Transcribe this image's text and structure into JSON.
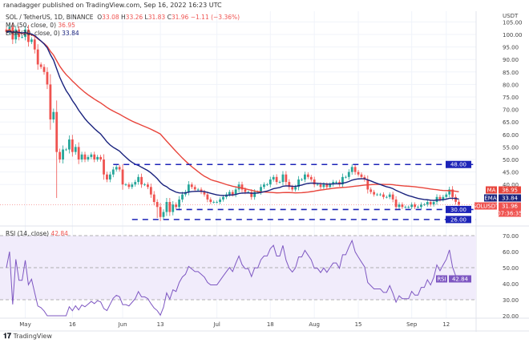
{
  "published": "ranadagger published on TradingView.com, Sep 16, 2022 16:23 UTC",
  "legend": {
    "symbol": "SOL / TetherUS, 1D, BINANCE",
    "o_label": "O",
    "o": "33.08",
    "h_label": "H",
    "h": "33.26",
    "l_label": "L",
    "l": "31.83",
    "c_label": "C",
    "c": "31.96",
    "change": "−1.11 (−3.36%)",
    "ma": "MA (50, close, 0)",
    "ma_value": "36.95",
    "ema": "EMA (20, close, 0)",
    "ema_value": "33.84",
    "rsi": "RSI (14, close)",
    "rsi_value": "42.84"
  },
  "footer": {
    "logo": "TradingView"
  },
  "colors": {
    "up": "#26a69a",
    "down": "#ef5350",
    "ma": "#e8453c",
    "ema": "#1a237e",
    "levels": "#1c23b8",
    "rsi": "#7e57c2",
    "rsi_band": "#f1ecfb"
  },
  "chart_data": [
    {
      "type": "candlestick",
      "title": "SOL / TetherUS, 1D, BINANCE",
      "ylabel": "USDT",
      "ylim": [
        22,
        106
      ],
      "x_start": "2022-04-25",
      "x_end": "2022-09-16",
      "x_ticks": [
        "May",
        "16",
        "Jun",
        "13",
        "Jul",
        "18",
        "Aug",
        "15",
        "Sep",
        "12"
      ],
      "x_tick_dates": [
        "2022-05-01",
        "2022-05-16",
        "2022-06-01",
        "2022-06-13",
        "2022-07-01",
        "2022-07-18",
        "2022-08-01",
        "2022-08-15",
        "2022-09-01",
        "2022-09-12"
      ],
      "y_ticks": [
        105,
        100,
        95,
        90,
        85,
        80,
        75,
        70,
        65,
        60,
        55,
        50,
        45,
        40
      ],
      "closes": [
        101,
        103,
        98,
        102,
        99,
        99,
        102,
        97,
        98,
        94,
        88,
        87,
        85,
        80,
        66,
        69,
        53,
        50,
        54,
        54,
        58,
        53,
        55,
        50,
        52,
        50,
        51,
        52,
        50,
        51,
        50,
        44,
        42,
        44,
        46,
        47,
        46,
        40,
        40,
        39,
        40,
        41,
        43,
        40,
        40,
        39,
        36,
        33,
        31,
        27,
        29,
        33,
        29,
        32,
        31,
        34,
        36,
        37,
        40,
        39,
        38,
        38,
        37,
        36,
        34,
        33,
        33,
        33,
        34,
        35,
        36,
        37,
        36,
        38,
        40,
        38,
        37,
        37,
        35,
        37,
        37,
        39,
        40,
        40,
        42,
        43,
        41,
        41,
        44,
        41,
        39,
        38,
        39,
        42,
        42,
        44,
        43,
        42,
        40,
        40,
        39,
        40,
        39,
        40,
        41,
        41,
        40,
        43,
        43,
        45,
        47,
        45,
        44,
        43,
        42,
        38,
        37,
        36,
        36,
        36,
        35,
        35,
        36,
        34,
        31,
        32,
        31,
        31,
        31,
        32,
        31,
        31,
        32,
        32,
        33,
        32,
        33,
        35,
        34,
        35,
        36,
        38,
        35,
        33.07,
        31.96
      ],
      "levels": [
        {
          "value": 48,
          "label": "48.00",
          "from": "2022-05-29"
        },
        {
          "value": 30,
          "label": "30.00",
          "from": "2022-06-18"
        },
        {
          "value": 26,
          "label": "26.00",
          "from": "2022-06-04"
        }
      ],
      "badges": {
        "ma": {
          "label": "MA",
          "value": "36.95"
        },
        "ema": {
          "label": "EMA",
          "value": "33.84"
        },
        "last": {
          "label": "SOLUSDT",
          "value": "31.96",
          "countdown": "07:36:35"
        }
      },
      "rsi": {
        "ylim": [
          20,
          70
        ],
        "y_ticks": [
          70,
          60,
          50,
          40,
          30,
          20
        ],
        "bands": [
          30,
          50,
          70
        ],
        "label": "RSI",
        "value": "42.84"
      }
    }
  ]
}
